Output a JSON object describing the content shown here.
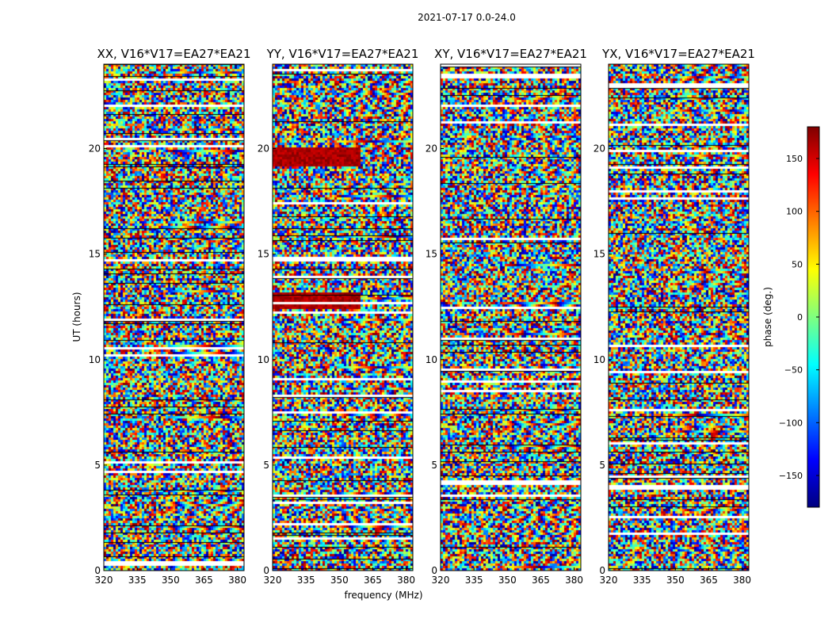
{
  "figure_title": "2021-07-17 0.0-24.0",
  "xlabel": "frequency (MHz)",
  "ylabel": "UT (hours)",
  "colorbar": {
    "label": "phase (deg.)",
    "range": [
      -180,
      180
    ],
    "ticks": [
      -150,
      -100,
      -50,
      0,
      50,
      100,
      150
    ],
    "tick_labels": [
      "−150",
      "−100",
      "−50",
      "0",
      "50",
      "100",
      "150"
    ],
    "colormap": [
      "#00007f",
      "#0000ff",
      "#007fff",
      "#00ffff",
      "#7fff7f",
      "#ffff00",
      "#ff7f00",
      "#ff0000",
      "#7f0000"
    ]
  },
  "chart_data": [
    {
      "type": "heatmap",
      "title": "XX, V16*V17=EA27*EA21",
      "xlim": [
        320,
        383
      ],
      "ylim": [
        0,
        24
      ],
      "xticks": [
        320,
        335,
        350,
        365,
        380
      ],
      "yticks": [
        0,
        5,
        10,
        15,
        20
      ],
      "value": "phase (deg.)"
    },
    {
      "type": "heatmap",
      "title": "YY, V16*V17=EA27*EA21",
      "xlim": [
        320,
        383
      ],
      "ylim": [
        0,
        24
      ],
      "xticks": [
        320,
        335,
        350,
        365,
        380
      ],
      "yticks": [
        0,
        5,
        10,
        15,
        20
      ],
      "value": "phase (deg.)"
    },
    {
      "type": "heatmap",
      "title": "XY, V16*V17=EA27*EA21",
      "xlim": [
        320,
        383
      ],
      "ylim": [
        0,
        24
      ],
      "xticks": [
        320,
        335,
        350,
        365,
        380
      ],
      "yticks": [
        0,
        5,
        10,
        15,
        20
      ],
      "value": "phase (deg.)"
    },
    {
      "type": "heatmap",
      "title": "YX, V16*V17=EA27*EA21",
      "xlim": [
        320,
        383
      ],
      "ylim": [
        0,
        24
      ],
      "xticks": [
        320,
        335,
        350,
        365,
        380
      ],
      "yticks": [
        0,
        5,
        10,
        15,
        20
      ],
      "value": "phase (deg.)"
    }
  ]
}
